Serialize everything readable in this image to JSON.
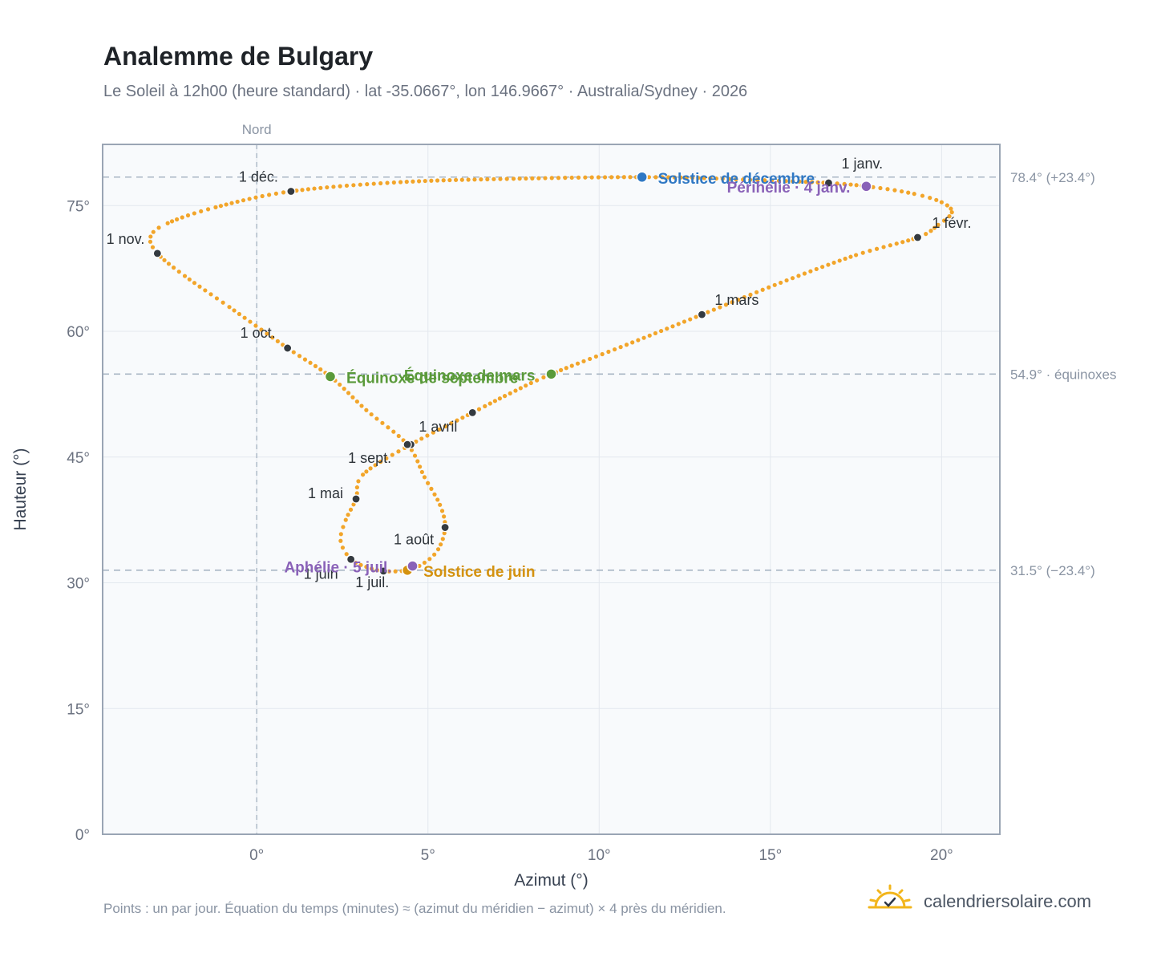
{
  "header": {
    "title": "Analemme de Bulgary",
    "subtitle": "Le Soleil à 12h00 (heure standard) · lat -35.0667°, lon 146.9667° · Australia/Sydney · 2026"
  },
  "footer": {
    "note": "Points : un par jour. Équation du temps (minutes) ≈ (azimut du méridien − azimut) × 4 près du méridien.",
    "brand": "calendriersolaire.com",
    "brand_icon": "sun-check-icon"
  },
  "colors": {
    "curve": "#f2a52a",
    "month_dot": "#343a40",
    "solstice_dec": "#2f78c4",
    "solstice_jun": "#d4920f",
    "equinox": "#5a9a3a",
    "apsis": "#8a62b8",
    "reference_line": "#a9b6c4",
    "plot_bg": "#f8fafc",
    "frame": "#9aa5b4"
  },
  "chart_data": {
    "type": "scatter",
    "title": "Analemme de Bulgary",
    "xlabel": "Azimut (°)",
    "ylabel": "Hauteur (°)",
    "xlim": [
      -4.5,
      21.7
    ],
    "ylim": [
      0,
      82.3
    ],
    "xticks": [
      {
        "value": 0,
        "label": "0°"
      },
      {
        "value": 5,
        "label": "5°"
      },
      {
        "value": 10,
        "label": "10°"
      },
      {
        "value": 15,
        "label": "15°"
      },
      {
        "value": 20,
        "label": "20°"
      }
    ],
    "yticks": [
      {
        "value": 0,
        "label": "0°"
      },
      {
        "value": 15,
        "label": "15°"
      },
      {
        "value": 30,
        "label": "30°"
      },
      {
        "value": 45,
        "label": "45°"
      },
      {
        "value": 60,
        "label": "60°"
      },
      {
        "value": 75,
        "label": "75°"
      }
    ],
    "grid": true,
    "north_line": {
      "azimuth": 0,
      "label": "Nord"
    },
    "reference_lines": [
      {
        "altitude": 78.4,
        "label": "78.4° (+23.4°)"
      },
      {
        "altitude": 54.9,
        "label": "54.9° · équinoxes"
      },
      {
        "altitude": 31.5,
        "label": "31.5° (−23.4°)"
      }
    ],
    "months": [
      {
        "label": "1 janv.",
        "az": 16.7,
        "alt": 77.7
      },
      {
        "label": "1 févr.",
        "az": 19.3,
        "alt": 71.2
      },
      {
        "label": "1 mars",
        "az": 13.0,
        "alt": 62.0
      },
      {
        "label": "",
        "az": 6.3,
        "alt": 50.3
      },
      {
        "label": "1 avril",
        "az": 4.5,
        "alt": 46.5
      },
      {
        "label": "1 mai",
        "az": 2.9,
        "alt": 40.0
      },
      {
        "label": "1 juin",
        "az": 2.75,
        "alt": 32.8
      },
      {
        "label": "1 juil.",
        "az": 3.7,
        "alt": 31.4
      },
      {
        "label": "1 août",
        "az": 5.5,
        "alt": 36.6
      },
      {
        "label": "1 sept.",
        "az": 4.4,
        "alt": 46.5
      },
      {
        "label": "1 oct.",
        "az": 0.9,
        "alt": 58.0
      },
      {
        "label": "1 nov.",
        "az": -2.9,
        "alt": 69.3
      },
      {
        "label": "1 déc.",
        "az": 1.0,
        "alt": 76.7
      }
    ],
    "events": [
      {
        "label": "Solstice de décembre",
        "az": 11.25,
        "alt": 78.4,
        "kind": "solstice_dec"
      },
      {
        "label": "Périhélie · 4 janv.",
        "az": 17.8,
        "alt": 77.3,
        "kind": "apsis"
      },
      {
        "label": "Équinoxe de mars",
        "az": 8.6,
        "alt": 54.9,
        "kind": "equinox"
      },
      {
        "label": "Équinoxe de septembre",
        "az": 2.15,
        "alt": 54.6,
        "kind": "equinox"
      },
      {
        "label": "Solstice de juin",
        "az": 4.4,
        "alt": 31.5,
        "kind": "solstice_jun"
      },
      {
        "label": "Aphélie · 5 juil.",
        "az": 4.55,
        "alt": 32.0,
        "kind": "apsis"
      }
    ],
    "daily_path": [
      [
        16.7,
        77.7
      ],
      [
        18.0,
        77.2
      ],
      [
        19.2,
        76.4
      ],
      [
        20.0,
        75.4
      ],
      [
        20.3,
        74.2
      ],
      [
        19.9,
        72.7
      ],
      [
        19.3,
        71.2
      ],
      [
        17.5,
        69.1
      ],
      [
        15.3,
        65.8
      ],
      [
        13.0,
        62.0
      ],
      [
        10.8,
        58.4
      ],
      [
        8.6,
        54.9
      ],
      [
        7.4,
        52.6
      ],
      [
        6.3,
        50.3
      ],
      [
        4.5,
        46.5
      ],
      [
        3.1,
        42.9
      ],
      [
        2.9,
        40.0
      ],
      [
        2.6,
        37.5
      ],
      [
        2.45,
        35.0
      ],
      [
        2.75,
        32.8
      ],
      [
        3.2,
        31.9
      ],
      [
        3.7,
        31.4
      ],
      [
        4.4,
        31.5
      ],
      [
        4.9,
        32.4
      ],
      [
        5.3,
        34.0
      ],
      [
        5.5,
        36.6
      ],
      [
        5.35,
        39.3
      ],
      [
        4.9,
        42.6
      ],
      [
        4.4,
        46.5
      ],
      [
        3.2,
        50.6
      ],
      [
        2.15,
        54.6
      ],
      [
        0.9,
        58.0
      ],
      [
        -0.8,
        62.9
      ],
      [
        -2.1,
        66.6
      ],
      [
        -2.9,
        69.3
      ],
      [
        -3.1,
        71.3
      ],
      [
        -2.6,
        72.9
      ],
      [
        -1.2,
        74.8
      ],
      [
        1.0,
        76.7
      ],
      [
        4.2,
        77.8
      ],
      [
        7.5,
        78.2
      ],
      [
        11.25,
        78.4
      ],
      [
        14.2,
        78.1
      ],
      [
        16.7,
        77.7
      ]
    ]
  }
}
